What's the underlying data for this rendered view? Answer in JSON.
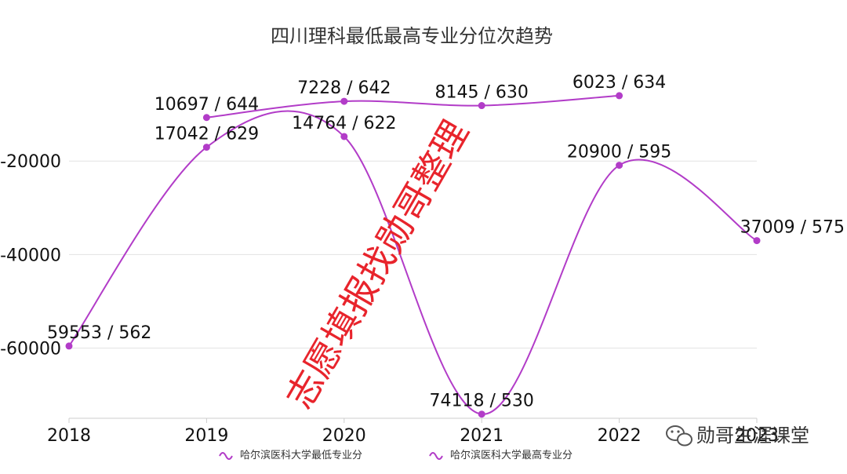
{
  "chart_data": {
    "type": "line",
    "title": "四川理科最低最高专业分位次趋势",
    "x": [
      "2018",
      "2019",
      "2020",
      "2021",
      "2022",
      "2023"
    ],
    "ylim": [
      -75000,
      0
    ],
    "yticks": [
      -20000,
      -40000,
      -60000
    ],
    "grid": true,
    "legend_position": "bottom",
    "series": [
      {
        "name": "哈尔滨医科大学最低专业分",
        "color": "#b23cc8",
        "values": [
          -59553,
          -17042,
          -14764,
          -74118,
          -20900,
          -37009
        ],
        "labels": [
          "59553 / 562",
          "17042 / 629",
          "14764 / 622",
          "74118 / 530",
          "20900 / 595",
          "37009 / 575"
        ]
      },
      {
        "name": "哈尔滨医科大学最高专业分",
        "color": "#b23cc8",
        "values": [
          null,
          -10697,
          -7228,
          -8145,
          -6023,
          null
        ],
        "labels": [
          "",
          "10697 / 644",
          "7228 / 642",
          "8145 / 630",
          "6023 / 634",
          ""
        ]
      }
    ]
  },
  "watermark": "志愿填报找勋哥整理",
  "brand": {
    "text": "勋哥生涯课堂",
    "icon": "wechat-icon"
  }
}
